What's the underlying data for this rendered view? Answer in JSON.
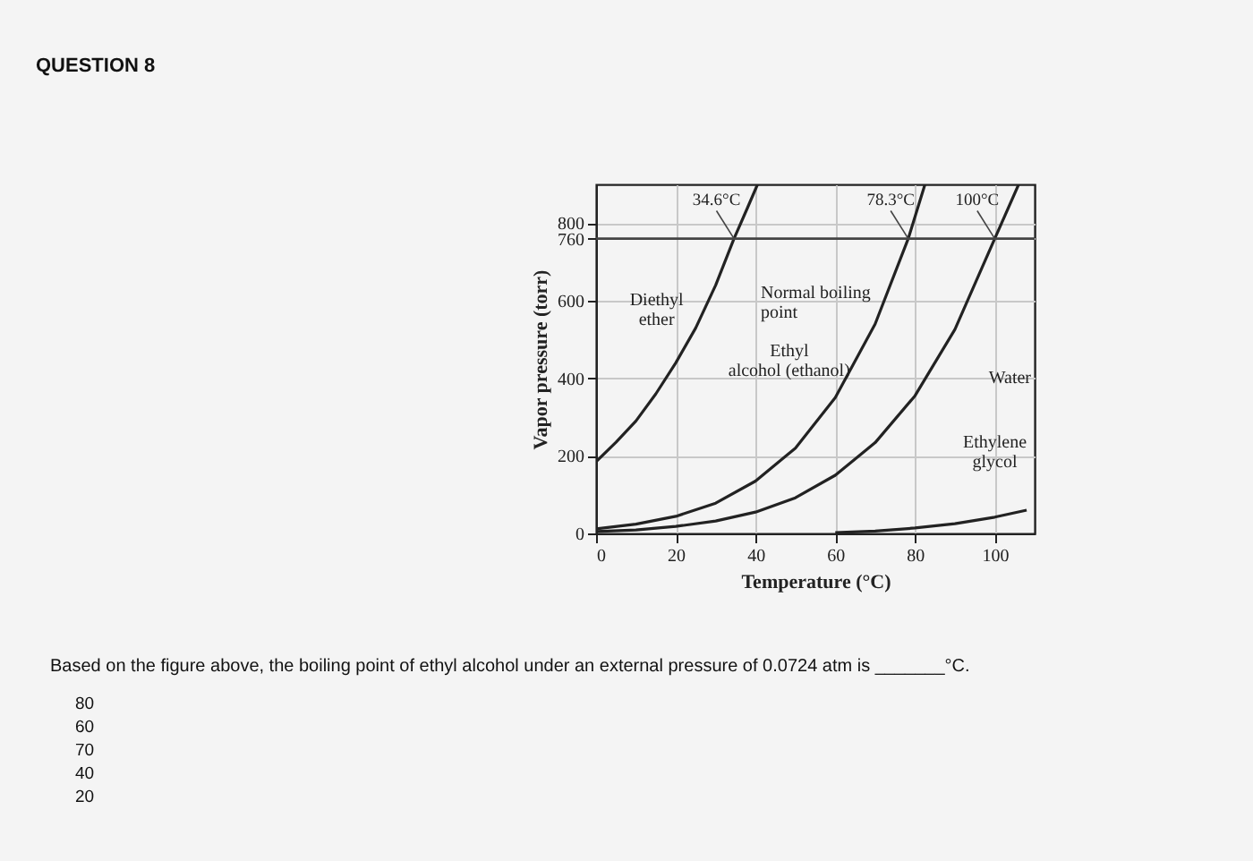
{
  "chart_data": {
    "type": "line",
    "title": "QUESTION 8",
    "xlabel": "Temperature (°C)",
    "ylabel": "Vapor pressure (torr)",
    "xlim": [
      0,
      110
    ],
    "ylim": [
      0,
      900
    ],
    "xticks": [
      0,
      20,
      40,
      60,
      80,
      100
    ],
    "yticks": [
      0,
      200,
      400,
      600,
      760,
      800
    ],
    "grid": true,
    "legend": false,
    "marker": "none",
    "line_style": "solid",
    "series": [
      {
        "name": "Diethyl ether",
        "color": "#222222",
        "x": [
          0,
          5,
          10,
          15,
          20,
          25,
          30,
          34.6,
          38,
          40.5
        ],
        "values": [
          185,
          235,
          290,
          360,
          440,
          530,
          640,
          760,
          840,
          900
        ]
      },
      {
        "name": "Ethyl alcohol (ethanol)",
        "color": "#222222",
        "x": [
          0,
          10,
          20,
          30,
          40,
          50,
          60,
          70,
          78.3,
          82.5
        ],
        "values": [
          12,
          24,
          44,
          78,
          135,
          220,
          350,
          540,
          760,
          900
        ]
      },
      {
        "name": "Water",
        "color": "#222222",
        "x": [
          0,
          10,
          20,
          30,
          40,
          50,
          60,
          70,
          80,
          90,
          100,
          106
        ],
        "values": [
          5,
          9,
          18,
          32,
          55,
          92,
          150,
          234,
          355,
          526,
          760,
          900
        ]
      },
      {
        "name": "Ethylene glycol",
        "color": "#222222",
        "x": [
          60,
          70,
          80,
          90,
          100,
          108
        ],
        "values": [
          2,
          6,
          14,
          25,
          42,
          60
        ]
      }
    ],
    "ref_lines": [
      {
        "axis": "y",
        "value": 760,
        "label": "Normal boiling point",
        "color": "#444444"
      }
    ],
    "annotations": [
      {
        "text": "34.6°C",
        "x": 34.6,
        "y": 760
      },
      {
        "text": "78.3°C",
        "x": 78.3,
        "y": 760
      },
      {
        "text": "100°C",
        "x": 100,
        "y": 760
      },
      "Based on the figure above, the boiling point of ethyl alcohol under an external pressure of 0.0724 atm is _______°C.",
      "80",
      "60",
      "70",
      "40",
      "20"
    ]
  }
}
